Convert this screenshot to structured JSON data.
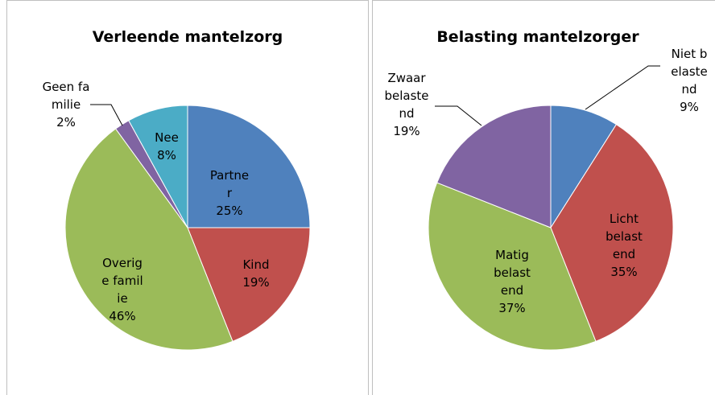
{
  "chart_data": [
    {
      "type": "pie",
      "title": "Verleende mantelzorg",
      "categories": [
        "Partner",
        "Kind",
        "Overige familie",
        "Geen familie",
        "Nee"
      ],
      "values": [
        25,
        19,
        46,
        2,
        8
      ],
      "value_labels": [
        "25%",
        "19%",
        "46%",
        "2%",
        "8%"
      ],
      "colors": [
        "#4f81bd",
        "#c0504d",
        "#9bbb59",
        "#8064a2",
        "#4bacc6"
      ]
    },
    {
      "type": "pie",
      "title": "Belasting mantelzorger",
      "categories": [
        "Niet belastend",
        "Licht belastend",
        "Matig belastend",
        "Zwaar belastend"
      ],
      "values": [
        9,
        35,
        37,
        19
      ],
      "value_labels": [
        "9%",
        "35%",
        "37%",
        "19%"
      ],
      "colors": [
        "#4f81bd",
        "#c0504d",
        "#9bbb59",
        "#8064a2"
      ]
    }
  ]
}
